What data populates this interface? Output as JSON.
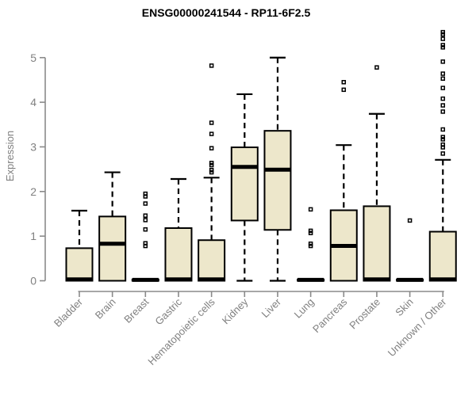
{
  "title": "ENSG00000241544 - RP11-6F2.5",
  "chart_data": {
    "type": "boxplot",
    "title": "ENSG00000241544 - RP11-6F2.5",
    "xlabel": "",
    "ylabel": "Expression",
    "ylim": [
      0,
      5.6
    ],
    "yticks": [
      0,
      1,
      2,
      3,
      4,
      5
    ],
    "grid": false,
    "legend": "none",
    "box_fill": "#EDE7CB",
    "box_stroke": "#000000",
    "median_color": "#000000",
    "whisker_color": "#000000",
    "outlier_color": "#000000",
    "axis_color": "#8A8A8A",
    "label_color": "#808080",
    "categories": [
      "Bladder",
      "Brain",
      "Breast",
      "Gastric",
      "Hematopoietic cells",
      "Kidney",
      "Liver",
      "Lung",
      "Pancreas",
      "Prostate",
      "Skin",
      "Unknown / Other"
    ],
    "boxes": [
      {
        "category": "Bladder",
        "whisker_low": 0,
        "q1": 0,
        "median": 0.03,
        "q3": 0.73,
        "whisker_high": 1.57,
        "outliers": []
      },
      {
        "category": "Brain",
        "whisker_low": 0,
        "q1": 0,
        "median": 0.83,
        "q3": 1.44,
        "whisker_high": 2.43,
        "outliers": []
      },
      {
        "category": "Breast",
        "whisker_low": 0,
        "q1": 0,
        "median": 0.02,
        "q3": 0.03,
        "whisker_high": 0.03,
        "outliers": [
          1.95,
          1.89,
          1.73,
          1.46,
          1.36,
          1.15,
          0.84,
          0.78
        ]
      },
      {
        "category": "Gastric",
        "whisker_low": 0,
        "q1": 0,
        "median": 0.03,
        "q3": 1.18,
        "whisker_high": 2.28,
        "outliers": []
      },
      {
        "category": "Hematopoietic cells",
        "whisker_low": 0,
        "q1": 0,
        "median": 0.03,
        "q3": 0.91,
        "whisker_high": 2.31,
        "outliers": [
          4.82,
          3.54,
          3.29,
          2.97,
          2.64,
          2.59,
          2.48,
          2.43
        ]
      },
      {
        "category": "Kidney",
        "whisker_low": 0,
        "q1": 1.35,
        "median": 2.55,
        "q3": 2.99,
        "whisker_high": 4.18,
        "outliers": []
      },
      {
        "category": "Liver",
        "whisker_low": 0,
        "q1": 1.14,
        "median": 2.49,
        "q3": 3.36,
        "whisker_high": 5.0,
        "outliers": []
      },
      {
        "category": "Lung",
        "whisker_low": 0,
        "q1": 0,
        "median": 0.02,
        "q3": 0.03,
        "whisker_high": 0.03,
        "outliers": [
          1.6,
          1.12,
          1.07,
          0.83,
          0.78
        ]
      },
      {
        "category": "Pancreas",
        "whisker_low": 0,
        "q1": 0,
        "median": 0.78,
        "q3": 1.58,
        "whisker_high": 3.04,
        "outliers": [
          4.45,
          4.28
        ]
      },
      {
        "category": "Prostate",
        "whisker_low": 0,
        "q1": 0,
        "median": 0.03,
        "q3": 1.67,
        "whisker_high": 3.74,
        "outliers": [
          4.78
        ]
      },
      {
        "category": "Skin",
        "whisker_low": 0,
        "q1": 0,
        "median": 0.02,
        "q3": 0.03,
        "whisker_high": 0.03,
        "outliers": [
          1.35
        ]
      },
      {
        "category": "Unknown / Other",
        "whisker_low": 0,
        "q1": 0,
        "median": 0.03,
        "q3": 1.1,
        "whisker_high": 2.71,
        "outliers": [
          5.57,
          5.52,
          5.42,
          5.28,
          5.23,
          4.91,
          4.64,
          4.53,
          4.32,
          4.08,
          3.93,
          3.79,
          3.39,
          3.22,
          3.17,
          3.05,
          2.99,
          2.85
        ]
      }
    ]
  }
}
